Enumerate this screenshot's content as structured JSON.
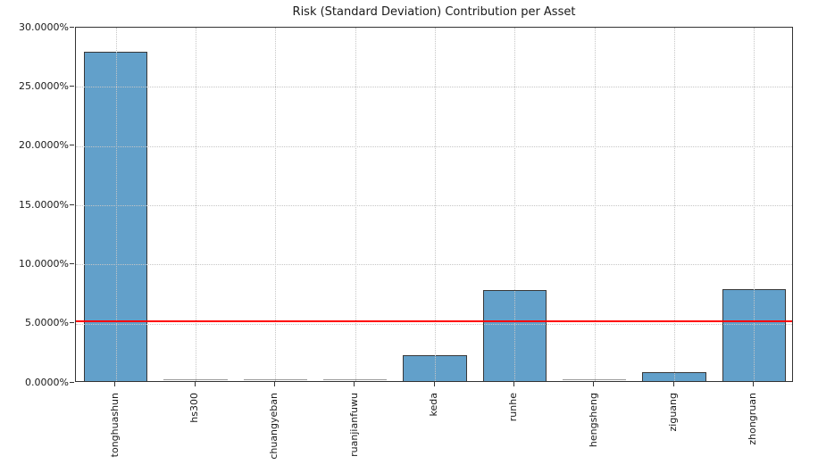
{
  "figure": {
    "background": "#ffffff",
    "text_color": "#1a1a1a"
  },
  "chart_data": {
    "type": "bar",
    "title": "Risk (Standard Deviation) Contribution per Asset",
    "xlabel": "",
    "ylabel": "",
    "categories": [
      "tonghuashun",
      "hs300",
      "chuangyeban",
      "ruanjianfuwu",
      "keda",
      "runhe",
      "hengsheng",
      "ziguang",
      "zhongruan"
    ],
    "values": [
      27.8,
      0.03,
      0.04,
      0.03,
      2.2,
      7.7,
      0.03,
      0.75,
      7.8
    ],
    "unit": "percent",
    "ylim": [
      0,
      30
    ],
    "ytick_step": 5,
    "ytick_labels": [
      "0.0000%",
      "5.0000%",
      "10.0000%",
      "15.0000%",
      "20.0000%",
      "25.0000%",
      "30.0000%"
    ],
    "grid": "dotted both axes",
    "legend": "none",
    "bar_color": "#62a0ca",
    "bar_edge_color": "#383838",
    "reference_line": {
      "y": 5.2,
      "color": "#ff0000",
      "style": "solid"
    }
  }
}
